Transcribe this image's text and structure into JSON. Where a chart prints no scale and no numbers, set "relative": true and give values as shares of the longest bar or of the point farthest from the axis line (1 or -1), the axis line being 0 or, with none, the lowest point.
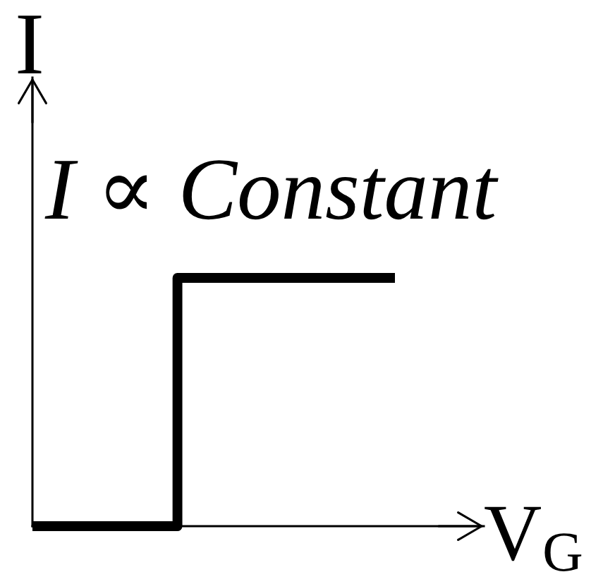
{
  "chart_data": {
    "type": "step",
    "xlabel": "V$_{G}$",
    "ylabel": "I",
    "annotations": [
      "I ∝ Constant"
    ],
    "categories": [
      null,
      null,
      null,
      null,
      null,
      null
    ],
    "relative": true,
    "series": [
      {
        "color": "#000000",
        "values": [
          0,
          0,
          1,
          1,
          1,
          1
        ]
      }
    ]
  }
}
